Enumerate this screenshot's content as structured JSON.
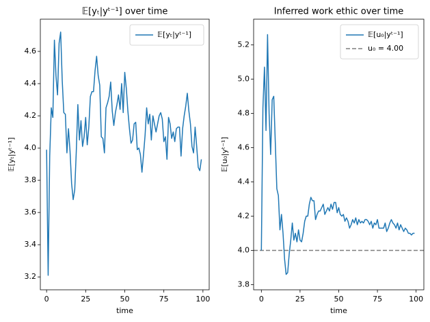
{
  "chart_data": [
    {
      "type": "line",
      "title": "𝔼[yₜ|yᵗ⁻¹] over time",
      "x_label": "time",
      "y_label": "𝔼[yₜ|yᵗ⁻¹]",
      "x": [
        0,
        1,
        2,
        3,
        4,
        5,
        6,
        7,
        8,
        9,
        10,
        11,
        12,
        13,
        14,
        15,
        16,
        17,
        18,
        19,
        20,
        21,
        22,
        23,
        24,
        25,
        26,
        27,
        28,
        29,
        30,
        31,
        32,
        33,
        34,
        35,
        36,
        37,
        38,
        39,
        40,
        41,
        42,
        43,
        44,
        45,
        46,
        47,
        48,
        49,
        50,
        51,
        52,
        53,
        54,
        55,
        56,
        57,
        58,
        59,
        60,
        61,
        62,
        63,
        64,
        65,
        66,
        67,
        68,
        69,
        70,
        71,
        72,
        73,
        74,
        75,
        76,
        77,
        78,
        79,
        80,
        81,
        82,
        83,
        84,
        85,
        86,
        87,
        88,
        89,
        90,
        91,
        92,
        93,
        94,
        95,
        96,
        97,
        98,
        99
      ],
      "series": [
        {
          "name": "𝔼[yₜ|yᵗ⁻¹]",
          "color": "#1f77b4",
          "values": [
            3.99,
            3.21,
            3.95,
            4.25,
            4.19,
            4.67,
            4.45,
            4.33,
            4.65,
            4.72,
            4.42,
            4.22,
            4.21,
            3.97,
            4.12,
            3.98,
            3.78,
            3.68,
            3.74,
            3.98,
            4.27,
            4.05,
            4.17,
            4.01,
            4.07,
            4.19,
            4.02,
            4.13,
            4.32,
            4.35,
            4.35,
            4.48,
            4.57,
            4.45,
            4.39,
            4.07,
            4.06,
            3.97,
            4.25,
            4.28,
            4.32,
            4.41,
            4.23,
            4.14,
            4.22,
            4.27,
            4.33,
            4.24,
            4.4,
            4.22,
            4.47,
            4.37,
            4.23,
            4.12,
            4.03,
            4.05,
            4.15,
            4.16,
            3.99,
            4.0,
            3.96,
            3.85,
            3.96,
            4.08,
            4.25,
            4.15,
            4.21,
            4.05,
            4.2,
            4.15,
            4.1,
            4.15,
            4.2,
            4.22,
            4.18,
            4.04,
            4.07,
            3.93,
            4.19,
            4.15,
            4.06,
            4.1,
            4.04,
            4.12,
            4.13,
            4.13,
            3.95,
            4.12,
            4.2,
            4.26,
            4.34,
            4.23,
            4.15,
            4.01,
            3.97,
            4.13,
            4.01,
            3.88,
            3.86,
            3.93
          ]
        }
      ],
      "xlim": [
        -4,
        104
      ],
      "xticks": [
        0,
        25,
        50,
        75,
        100
      ],
      "ylim": [
        3.12,
        4.8
      ],
      "yticks": [
        {
          "value": 3.2,
          "label": "3.2"
        },
        {
          "value": 3.4,
          "label": "3.4"
        },
        {
          "value": 3.6,
          "label": "3.6"
        },
        {
          "value": 3.8,
          "label": "3.8"
        },
        {
          "value": 4.0,
          "label": "4.0"
        },
        {
          "value": 4.2,
          "label": "4.2"
        },
        {
          "value": 4.4,
          "label": "4.4"
        },
        {
          "value": 4.6,
          "label": "4.6"
        }
      ],
      "legend": "upper right"
    },
    {
      "type": "line",
      "title": "Inferred work ethic over time",
      "x_label": "time",
      "y_label": "𝔼[u₀|yᵗ⁻¹]",
      "x": [
        0,
        1,
        2,
        3,
        4,
        5,
        6,
        7,
        8,
        9,
        10,
        11,
        12,
        13,
        14,
        15,
        16,
        17,
        18,
        19,
        20,
        21,
        22,
        23,
        24,
        25,
        26,
        27,
        28,
        29,
        30,
        31,
        32,
        33,
        34,
        35,
        36,
        37,
        38,
        39,
        40,
        41,
        42,
        43,
        44,
        45,
        46,
        47,
        48,
        49,
        50,
        51,
        52,
        53,
        54,
        55,
        56,
        57,
        58,
        59,
        60,
        61,
        62,
        63,
        64,
        65,
        66,
        67,
        68,
        69,
        70,
        71,
        72,
        73,
        74,
        75,
        76,
        77,
        78,
        79,
        80,
        81,
        82,
        83,
        84,
        85,
        86,
        87,
        88,
        89,
        90,
        91,
        92,
        93,
        94,
        95,
        96,
        97,
        98,
        99
      ],
      "series": [
        {
          "name": "𝔼[u₀|yᵗ⁻¹]",
          "color": "#1f77b4",
          "values": [
            4.0,
            4.83,
            5.07,
            4.7,
            5.26,
            4.8,
            4.56,
            4.88,
            4.9,
            4.63,
            4.36,
            4.32,
            4.12,
            4.21,
            4.1,
            3.95,
            3.86,
            3.87,
            3.98,
            4.06,
            4.16,
            4.06,
            4.1,
            4.05,
            4.12,
            4.06,
            4.05,
            4.1,
            4.17,
            4.2,
            4.2,
            4.27,
            4.31,
            4.29,
            4.29,
            4.18,
            4.21,
            4.23,
            4.23,
            4.25,
            4.27,
            4.21,
            4.23,
            4.25,
            4.23,
            4.27,
            4.24,
            4.28,
            4.28,
            4.22,
            4.25,
            4.21,
            4.2,
            4.21,
            4.17,
            4.19,
            4.17,
            4.13,
            4.15,
            4.18,
            4.16,
            4.19,
            4.15,
            4.18,
            4.16,
            4.17,
            4.16,
            4.18,
            4.18,
            4.17,
            4.15,
            4.17,
            4.13,
            4.16,
            4.15,
            4.18,
            4.13,
            4.13,
            4.13,
            4.13,
            4.16,
            4.11,
            4.13,
            4.16,
            4.18,
            4.16,
            4.15,
            4.13,
            4.16,
            4.12,
            4.15,
            4.13,
            4.11,
            4.13,
            4.12,
            4.1,
            4.1,
            4.09,
            4.1,
            4.1
          ]
        }
      ],
      "hline": {
        "name": "u₀ = 4.00",
        "value": 4.0,
        "color": "#7f7f7f",
        "dashed": true
      },
      "xlim": [
        -5,
        105
      ],
      "xticks": [
        0,
        25,
        50,
        75,
        100
      ],
      "ylim": [
        3.77,
        5.35
      ],
      "yticks": [
        {
          "value": 3.8,
          "label": "3.8"
        },
        {
          "value": 4.0,
          "label": "4.0"
        },
        {
          "value": 4.2,
          "label": "4.2"
        },
        {
          "value": 4.4,
          "label": "4.4"
        },
        {
          "value": 4.6,
          "label": "4.6"
        },
        {
          "value": 4.8,
          "label": "4.8"
        },
        {
          "value": 5.0,
          "label": "5.0"
        },
        {
          "value": 5.2,
          "label": "5.2"
        }
      ],
      "legend": "upper right"
    }
  ]
}
